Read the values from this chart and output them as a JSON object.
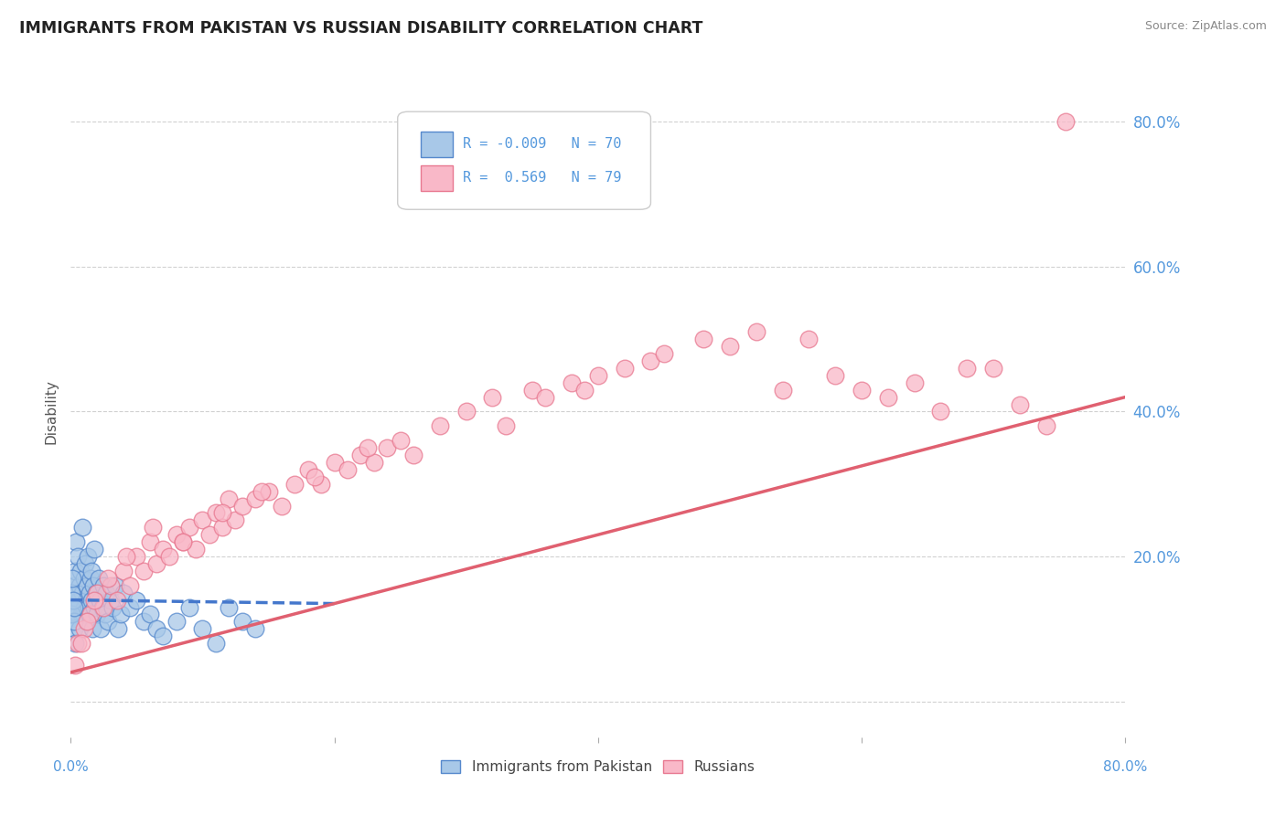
{
  "title": "IMMIGRANTS FROM PAKISTAN VS RUSSIAN DISABILITY CORRELATION CHART",
  "source": "Source: ZipAtlas.com",
  "ylabel": "Disability",
  "xmin": 0.0,
  "xmax": 80.0,
  "ymin": -5.0,
  "ymax": 85.0,
  "ytick_vals": [
    0,
    20,
    40,
    60,
    80
  ],
  "ytick_labels": [
    "",
    "20.0%",
    "40.0%",
    "60.0%",
    "80.0%"
  ],
  "color_blue_fill": "#a8c8e8",
  "color_blue_edge": "#5588cc",
  "color_pink_fill": "#f9b8c8",
  "color_pink_edge": "#e87890",
  "color_blue_line": "#4477cc",
  "color_pink_line": "#e06070",
  "title_color": "#222222",
  "axis_label_color": "#5599dd",
  "source_color": "#888888",
  "background_color": "#ffffff",
  "grid_color": "#cccccc",
  "pakistan_x": [
    0.1,
    0.15,
    0.2,
    0.25,
    0.3,
    0.35,
    0.4,
    0.45,
    0.5,
    0.55,
    0.6,
    0.65,
    0.7,
    0.75,
    0.8,
    0.85,
    0.9,
    0.95,
    1.0,
    1.05,
    1.1,
    1.15,
    1.2,
    1.25,
    1.3,
    1.35,
    1.4,
    1.45,
    1.5,
    1.55,
    1.6,
    1.65,
    1.7,
    1.75,
    1.8,
    1.9,
    2.0,
    2.1,
    2.2,
    2.3,
    2.4,
    2.5,
    2.6,
    2.7,
    2.8,
    3.0,
    3.2,
    3.4,
    3.6,
    3.8,
    4.0,
    4.5,
    5.0,
    5.5,
    6.0,
    6.5,
    7.0,
    8.0,
    9.0,
    10.0,
    11.0,
    12.0,
    13.0,
    14.0,
    0.05,
    0.08,
    0.12,
    0.18,
    0.22,
    0.28
  ],
  "pakistan_y": [
    14,
    12,
    16,
    10,
    18,
    8,
    22,
    15,
    12,
    20,
    14,
    16,
    10,
    18,
    12,
    24,
    15,
    12,
    17,
    13,
    19,
    14,
    16,
    11,
    20,
    13,
    15,
    12,
    17,
    14,
    18,
    10,
    16,
    13,
    21,
    15,
    12,
    17,
    14,
    10,
    13,
    16,
    12,
    15,
    11,
    14,
    13,
    16,
    10,
    12,
    15,
    13,
    14,
    11,
    12,
    10,
    9,
    11,
    13,
    10,
    8,
    13,
    11,
    10,
    15,
    12,
    17,
    14,
    11,
    13
  ],
  "russian_x": [
    0.5,
    1.0,
    1.5,
    2.0,
    2.5,
    3.0,
    3.5,
    4.0,
    4.5,
    5.0,
    5.5,
    6.0,
    6.5,
    7.0,
    7.5,
    8.0,
    8.5,
    9.0,
    9.5,
    10.0,
    10.5,
    11.0,
    11.5,
    12.0,
    12.5,
    13.0,
    14.0,
    15.0,
    16.0,
    17.0,
    18.0,
    19.0,
    20.0,
    21.0,
    22.0,
    23.0,
    24.0,
    25.0,
    26.0,
    28.0,
    30.0,
    32.0,
    33.0,
    35.0,
    36.0,
    38.0,
    39.0,
    40.0,
    42.0,
    44.0,
    45.0,
    48.0,
    50.0,
    52.0,
    54.0,
    56.0,
    58.0,
    60.0,
    62.0,
    64.0,
    66.0,
    68.0,
    70.0,
    72.0,
    74.0,
    75.5,
    0.3,
    0.8,
    1.2,
    1.8,
    2.8,
    4.2,
    6.2,
    8.5,
    11.5,
    14.5,
    18.5,
    22.5
  ],
  "russian_y": [
    8,
    10,
    12,
    15,
    13,
    16,
    14,
    18,
    16,
    20,
    18,
    22,
    19,
    21,
    20,
    23,
    22,
    24,
    21,
    25,
    23,
    26,
    24,
    28,
    25,
    27,
    28,
    29,
    27,
    30,
    32,
    30,
    33,
    32,
    34,
    33,
    35,
    36,
    34,
    38,
    40,
    42,
    38,
    43,
    42,
    44,
    43,
    45,
    46,
    47,
    48,
    50,
    49,
    51,
    43,
    50,
    45,
    43,
    42,
    44,
    40,
    46,
    46,
    41,
    38,
    80,
    5,
    8,
    11,
    14,
    17,
    20,
    24,
    22,
    26,
    29,
    31,
    35
  ],
  "pakistan_trend_x": [
    0.0,
    20.0
  ],
  "pakistan_trend_y": [
    14.0,
    13.5
  ],
  "russian_trend_x": [
    0.0,
    80.0
  ],
  "russian_trend_y": [
    4.0,
    42.0
  ]
}
